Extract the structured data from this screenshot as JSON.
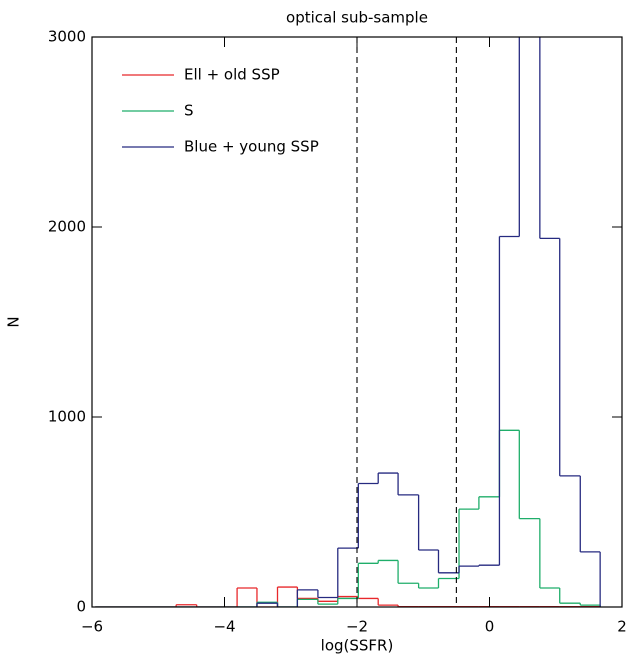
{
  "chart_data": {
    "type": "histogram",
    "title": "optical sub-sample",
    "x_label": "log(SSFR)",
    "y_label": "N",
    "bins": [
      -5.95,
      -5.64,
      -5.34,
      -5.03,
      -4.73,
      -4.42,
      -4.12,
      -3.81,
      -3.51,
      -3.2,
      -2.9,
      -2.59,
      -2.29,
      -1.98,
      -1.68,
      -1.38,
      -1.07,
      -0.77,
      -0.46,
      -0.16,
      0.15,
      0.45,
      0.76,
      1.06,
      1.37,
      1.67
    ],
    "series": [
      {
        "name": "Ell + old SSP",
        "color": "#e8282b",
        "values": [
          0,
          0,
          0,
          0,
          12,
          0,
          0,
          100,
          0,
          105,
          45,
          30,
          55,
          45,
          10,
          2,
          2,
          2,
          2,
          2,
          2,
          2,
          2,
          2,
          2
        ]
      },
      {
        "name": "S",
        "color": "#1fae6a",
        "values": [
          0,
          0,
          0,
          0,
          0,
          0,
          0,
          0,
          25,
          0,
          40,
          15,
          45,
          230,
          245,
          125,
          100,
          150,
          515,
          580,
          930,
          465,
          100,
          20,
          10
        ]
      },
      {
        "name": "Blue + young SSP",
        "color": "#262a80",
        "values": [
          0,
          0,
          0,
          0,
          0,
          0,
          0,
          0,
          20,
          0,
          90,
          50,
          310,
          650,
          705,
          590,
          300,
          180,
          215,
          220,
          1950,
          3100,
          1940,
          690,
          290
        ]
      }
    ],
    "vlines": [
      -2,
      -0.5
    ],
    "xlim": [
      -6,
      2
    ],
    "xticks": [
      {
        "value": -6,
        "label": "−6"
      },
      {
        "value": -4,
        "label": "−4"
      },
      {
        "value": -2,
        "label": "−2"
      },
      0,
      2
    ],
    "ylim": [
      0,
      3000
    ],
    "yticks": [
      0,
      1000,
      2000,
      3000
    ],
    "legend": "upper left"
  }
}
